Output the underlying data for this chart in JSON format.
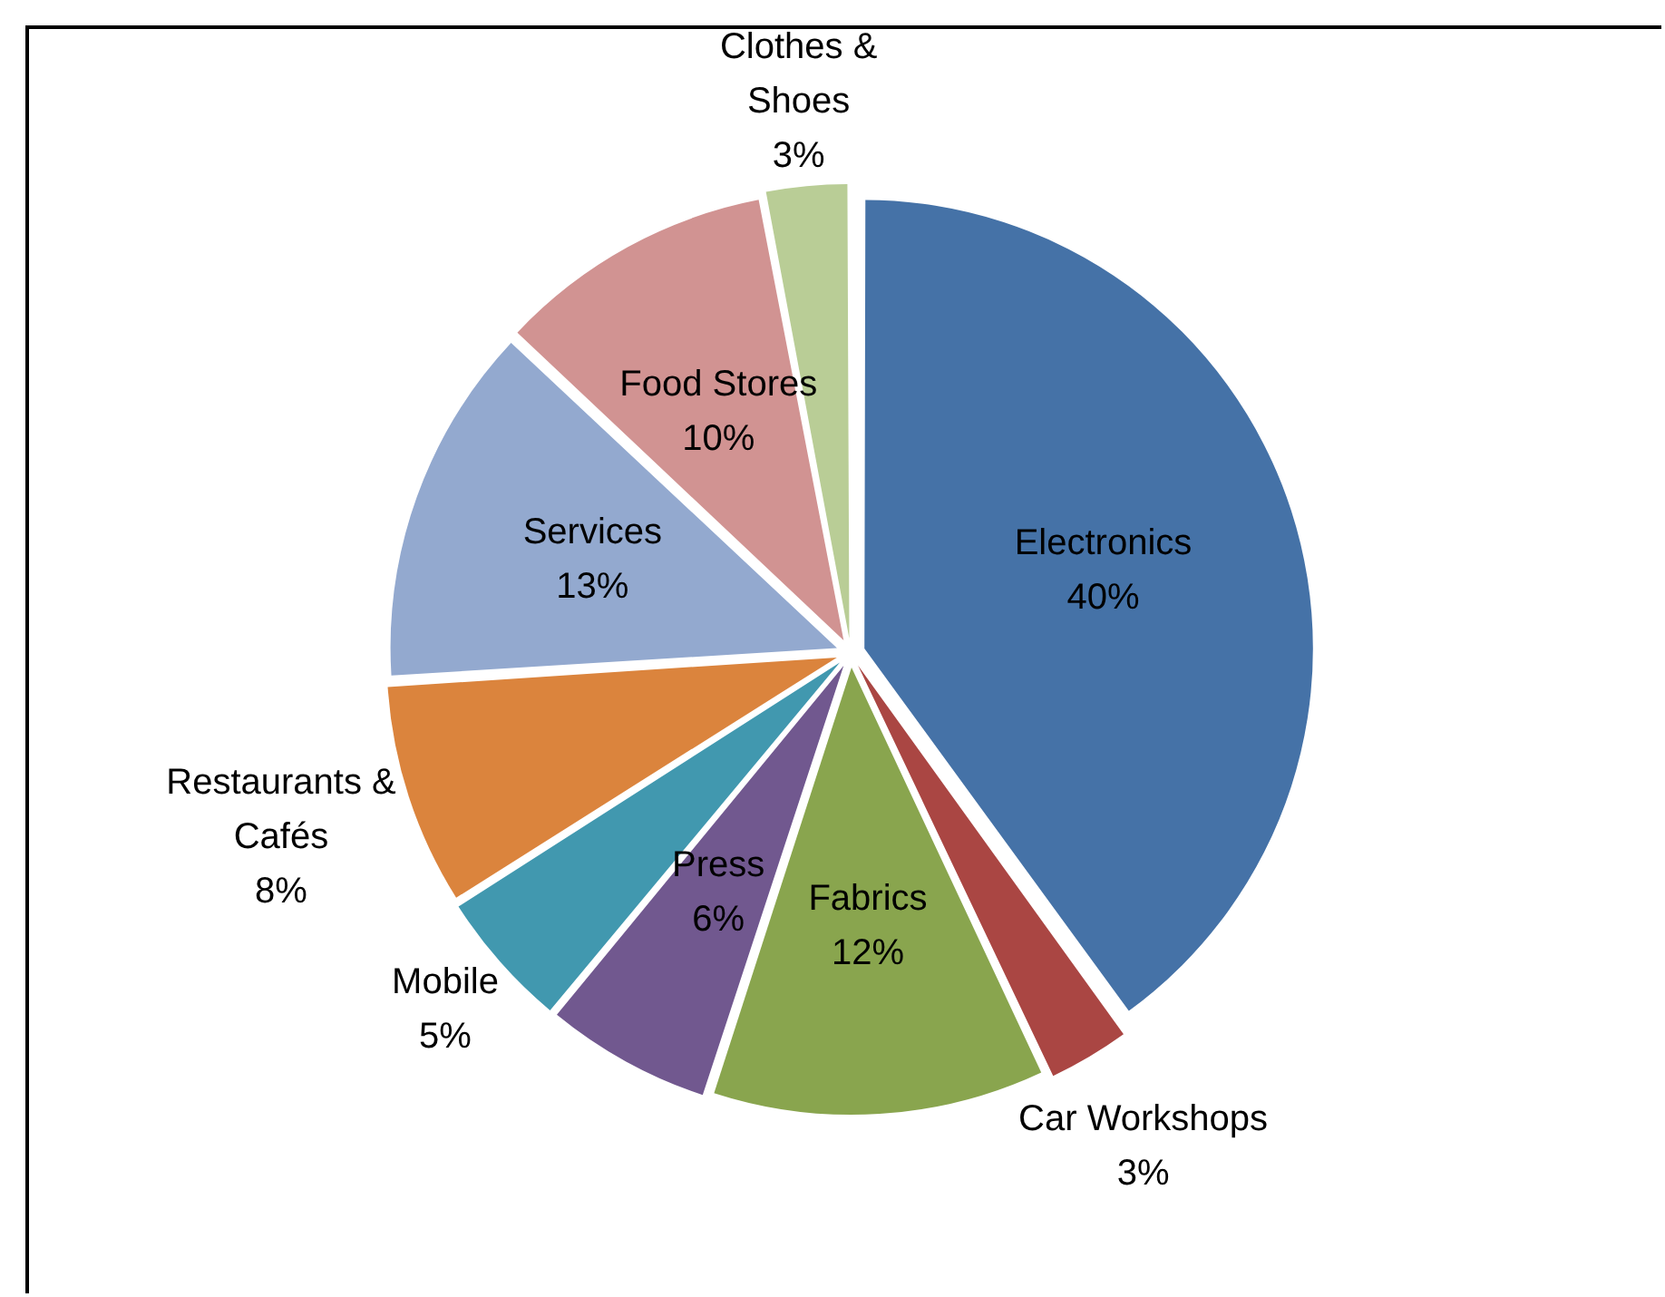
{
  "chart_data": {
    "type": "pie",
    "categories": [
      "Electronics",
      "Car Workshops",
      "Fabrics",
      "Press",
      "Mobile",
      "Restaurants & Cafés",
      "Services",
      "Food Stores",
      "Clothes & Shoes"
    ],
    "values": [
      40,
      3,
      12,
      6,
      5,
      8,
      13,
      10,
      3
    ],
    "colors": [
      "#4572a7",
      "#aa4643",
      "#89a54e",
      "#71588f",
      "#4198af",
      "#db843d",
      "#93a9cf",
      "#d19392",
      "#b9cd96"
    ],
    "value_labels": [
      "40%",
      "3%",
      "12%",
      "6%",
      "5%",
      "8%",
      "13%",
      "10%",
      "3%"
    ],
    "legend": false
  }
}
